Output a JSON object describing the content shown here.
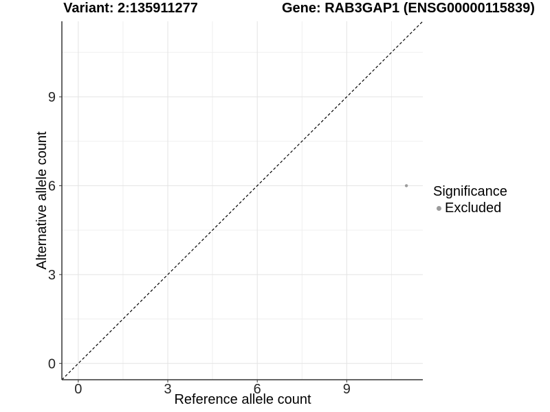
{
  "chart_data": {
    "type": "scatter",
    "title_left": "Variant: 2:135911277",
    "title_right": "Gene: RAB3GAP1 (ENSG00000115839)",
    "xlabel": "Reference allele count",
    "ylabel": "Alternative allele count",
    "xlim": [
      -0.55,
      11.55
    ],
    "ylim": [
      -0.55,
      11.55
    ],
    "x_ticks": [
      0,
      3,
      6,
      9
    ],
    "y_ticks": [
      0,
      3,
      6,
      9
    ],
    "x_minor_ticks": [
      1.5,
      4.5,
      7.5,
      10.5
    ],
    "y_minor_ticks": [
      1.5,
      4.5,
      7.5,
      10.5
    ],
    "grid": "major and minor, light gray on white",
    "legend_position": "right",
    "reference_line": {
      "kind": "identity y=x",
      "style": "dashed",
      "color": "#000000"
    },
    "series": [
      {
        "name": "Excluded",
        "marker": "circle",
        "color": "#9b9b9b",
        "points": [
          {
            "x": 11,
            "y": 6
          }
        ]
      }
    ],
    "legend": {
      "title": "Significance",
      "items": [
        {
          "label": "Excluded",
          "color": "#9b9b9b"
        }
      ]
    }
  },
  "colors": {
    "background": "#ffffff",
    "axis_line": "#333333",
    "tick_mark": "#333333",
    "tick_label": "#262626",
    "grid_major": "#e3e3e3",
    "grid_minor": "#efefef",
    "point": "#9b9b9b",
    "title_text": "#000000"
  }
}
